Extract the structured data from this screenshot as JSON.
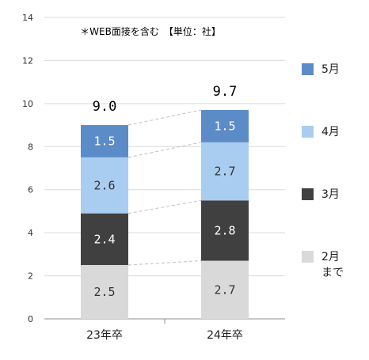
{
  "chart_data": {
    "type": "bar",
    "stacked": true,
    "title": "＊WEB面接を含む　【単位：社】",
    "categories": [
      "23年卒",
      "24年卒"
    ],
    "series": [
      {
        "name": "2月まで",
        "name_lines": [
          "2月",
          "まで"
        ],
        "color": "#d9d9d9",
        "label_color": "#333333",
        "values": [
          2.5,
          2.7
        ],
        "labels": [
          "2.5",
          "2.7"
        ]
      },
      {
        "name": "3月",
        "name_lines": [
          "3月"
        ],
        "color": "#404040",
        "label_color": "#ffffff",
        "values": [
          2.4,
          2.8
        ],
        "labels": [
          "2.4",
          "2.8"
        ]
      },
      {
        "name": "4月",
        "name_lines": [
          "4月"
        ],
        "color": "#a9cdf0",
        "label_color": "#333333",
        "values": [
          2.6,
          2.7
        ],
        "labels": [
          "2.6",
          "2.7"
        ]
      },
      {
        "name": "5月",
        "name_lines": [
          "5月"
        ],
        "color": "#5b8cc7",
        "label_color": "#ffffff",
        "values": [
          1.5,
          1.5
        ],
        "labels": [
          "1.5",
          "1.5"
        ]
      }
    ],
    "totals": [
      "9.0",
      "9.7"
    ],
    "ylim": [
      0,
      14
    ],
    "yticks": [
      "0",
      "2",
      "4",
      "6",
      "8",
      "10",
      "12",
      "14"
    ],
    "grid": true,
    "legend_position": "right"
  }
}
